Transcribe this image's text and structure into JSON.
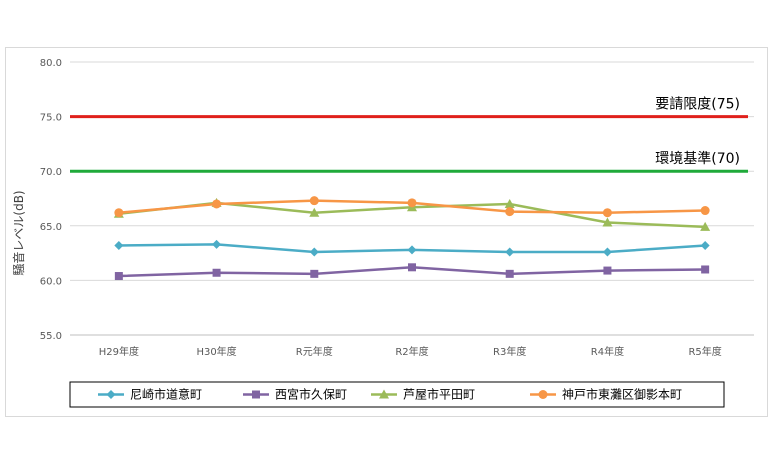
{
  "chart_data": {
    "type": "line",
    "ylabel": "騒音レベル(dB)",
    "ylim": [
      55.0,
      80.0
    ],
    "yticks": [
      "55.0",
      "60.0",
      "65.0",
      "70.0",
      "75.0",
      "80.0"
    ],
    "categories": [
      "H29年度",
      "H30年度",
      "R元年度",
      "R2年度",
      "R3年度",
      "R4年度",
      "R5年度"
    ],
    "reference_lines": [
      {
        "label": "要請限度(75)",
        "value": 75,
        "color": "#e0201b"
      },
      {
        "label": "環境基準(70)",
        "value": 70,
        "color": "#1faa3a"
      }
    ],
    "series": [
      {
        "name": "尼崎市道意町",
        "values": [
          63.2,
          63.3,
          62.6,
          62.8,
          62.6,
          62.6,
          63.2
        ],
        "color": "#4bacc6",
        "marker": "diamond"
      },
      {
        "name": "西宮市久保町",
        "values": [
          60.4,
          60.7,
          60.6,
          61.2,
          60.6,
          60.9,
          61.0
        ],
        "color": "#8064a2",
        "marker": "square"
      },
      {
        "name": "芦屋市平田町",
        "values": [
          66.1,
          67.1,
          66.2,
          66.7,
          67.0,
          65.3,
          64.9
        ],
        "color": "#9bbb59",
        "marker": "triangle"
      },
      {
        "name": "神戸市東灘区御影本町",
        "values": [
          66.2,
          67.0,
          67.3,
          67.1,
          66.3,
          66.2,
          66.4
        ],
        "color": "#f79646",
        "marker": "circle"
      }
    ],
    "grid": true,
    "legend_position": "bottom"
  }
}
